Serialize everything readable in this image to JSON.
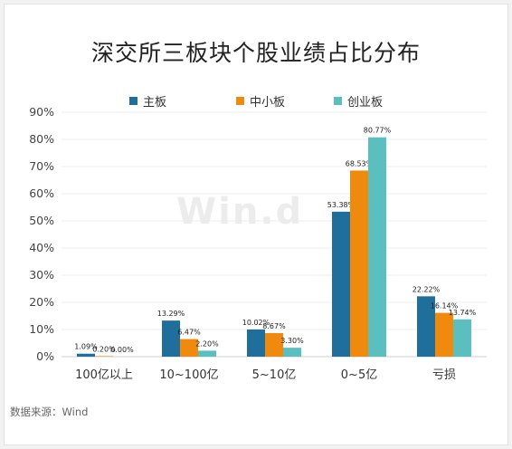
{
  "title": "深交所三板块个股业绩占比分布",
  "source": "数据来源：Wind",
  "watermark": "Win.d",
  "chart_data": {
    "type": "bar",
    "categories": [
      "100亿以上",
      "10~100亿",
      "5~10亿",
      "0~5亿",
      "亏损"
    ],
    "series": [
      {
        "name": "主板",
        "color": "#1f6e9c",
        "values": [
          1.09,
          13.29,
          10.02,
          53.38,
          22.22
        ],
        "labels": [
          "1.09%",
          "13.29%",
          "10.02%",
          "53.38%",
          "22.22%"
        ]
      },
      {
        "name": "中小板",
        "color": "#f08a0f",
        "values": [
          0.2,
          6.47,
          8.67,
          68.53,
          16.14
        ],
        "labels": [
          "0.20%",
          "6.47%",
          "8.67%",
          "68.53%",
          "16.14%"
        ]
      },
      {
        "name": "创业板",
        "color": "#5bbfbf",
        "values": [
          0.0,
          2.2,
          3.3,
          80.77,
          13.74
        ],
        "labels": [
          "0.00%",
          "2.20%",
          "3.30%",
          "80.77%",
          "13.74%"
        ]
      }
    ],
    "yticks": [
      "0%",
      "10%",
      "20%",
      "30%",
      "40%",
      "50%",
      "60%",
      "70%",
      "80%",
      "90%"
    ],
    "ylim": [
      0,
      90
    ],
    "grid": true,
    "legend_position": "top"
  }
}
